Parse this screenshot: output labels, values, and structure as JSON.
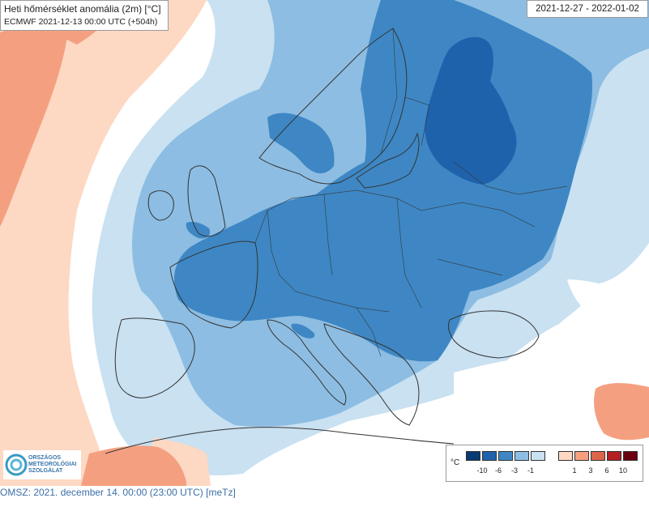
{
  "map": {
    "title": "Heti hőmérséklet anomália (2m) [°C]",
    "run": "ECMWF 2021-12-13 00:00 UTC (+504h)",
    "period": "2021-12-27 - 2022-01-02",
    "region": "Europe",
    "legend": {
      "unit": "°C",
      "cold_ticks": [
        "-10",
        "-6",
        "-3",
        "-1"
      ],
      "warm_ticks": [
        "1",
        "3",
        "6",
        "10"
      ],
      "cold_colors": [
        "#083a74",
        "#1f62ac",
        "#3e87c4",
        "#8dbde2",
        "#c9e1f1"
      ],
      "warm_colors": [
        "#fdd8c3",
        "#f4a080",
        "#dc6448",
        "#b41e24",
        "#6b0010"
      ]
    },
    "colors": {
      "sea": "#ffffff",
      "land_neutral": "#ffffff",
      "warm_light": "#fdd8c3",
      "warm": "#f4a080",
      "cold_vlight": "#c9e1f1",
      "cold_light": "#8dbde2",
      "cold_mid": "#3e87c4",
      "cold_dark": "#1f62ac"
    }
  },
  "logo": {
    "lines": [
      "ORSZÁGOS",
      "METEOROLÓGIAI",
      "SZOLGÁLAT"
    ]
  },
  "footer": {
    "text": "OMSZ: 2021. december 14. 00:00 (23:00  UTC)  [meTz]"
  }
}
